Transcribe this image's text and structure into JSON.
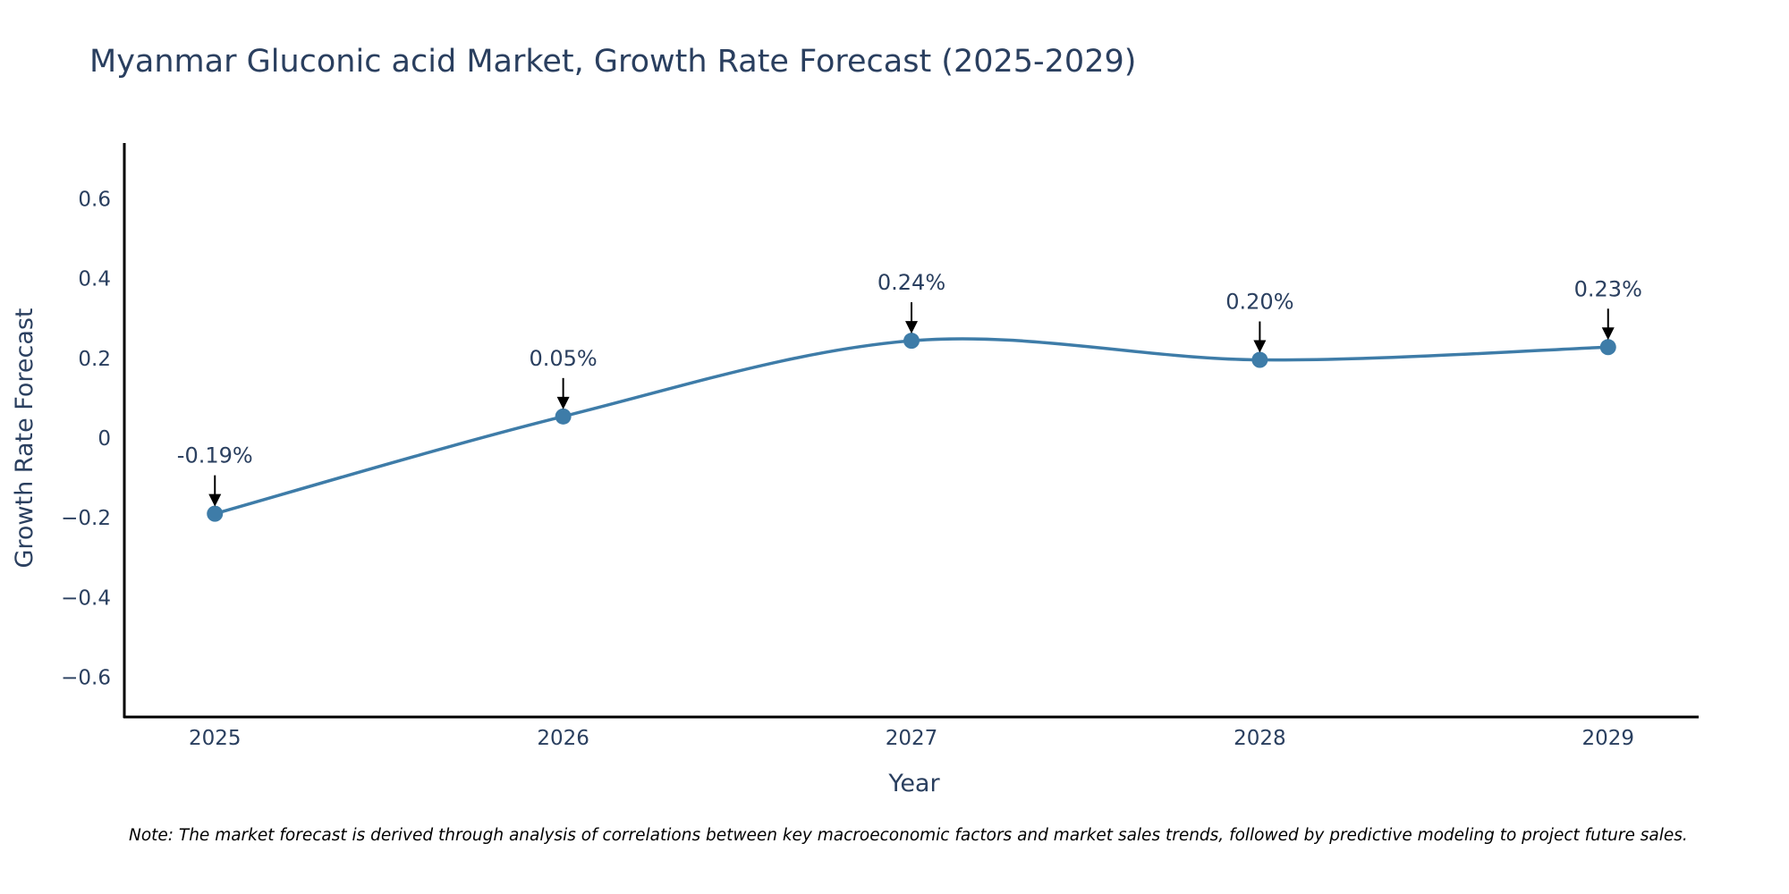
{
  "chart_data": {
    "type": "line",
    "title": "Myanmar Gluconic acid Market, Growth Rate Forecast (2025-2029)",
    "xlabel": "Year",
    "ylabel": "Growth Rate Forecast",
    "categories": [
      "2025",
      "2026",
      "2027",
      "2028",
      "2029"
    ],
    "x": [
      2025,
      2026,
      2027,
      2028,
      2029
    ],
    "values": [
      -0.19,
      0.054,
      0.244,
      0.196,
      0.228
    ],
    "data_labels": [
      "-0.19%",
      "0.05%",
      "0.24%",
      "0.20%",
      "0.23%"
    ],
    "ylim": [
      -0.7,
      0.74
    ],
    "xlim": [
      2024.74,
      2029.26
    ],
    "y_ticks": [
      -0.6,
      -0.4,
      -0.2,
      0,
      0.2,
      0.4,
      0.6
    ],
    "y_tick_labels": [
      "−0.6",
      "−0.4",
      "−0.2",
      "0",
      "0.2",
      "0.4",
      "0.6"
    ],
    "grid": false,
    "line_shape": "spline",
    "series_color": "#3e7ca8",
    "axis_color": "#000000",
    "note": "Note: The market forecast is derived through analysis of correlations between key macroeconomic factors and market sales trends, followed by predictive modeling to project future sales."
  }
}
